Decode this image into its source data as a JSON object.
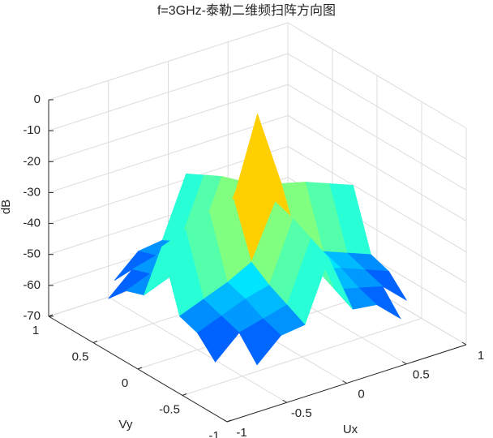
{
  "chart_data": {
    "type": "surface",
    "title": "f=3GHz-泰勒二维频扫阵方向图",
    "xlabel": "Ux",
    "ylabel": "Vy",
    "zlabel": "dB",
    "x": [
      -1,
      -0.8,
      -0.6,
      -0.4,
      -0.2,
      0,
      0.2,
      0.4,
      0.6,
      0.8,
      1
    ],
    "y": [
      -1,
      -0.8,
      -0.6,
      -0.4,
      -0.2,
      0,
      0.2,
      0.4,
      0.6,
      0.8,
      1
    ],
    "z": [
      [
        null,
        null,
        null,
        null,
        null,
        -38,
        null,
        null,
        null,
        null,
        null
      ],
      [
        null,
        null,
        -60,
        -53,
        -52,
        -33,
        -52,
        -53,
        -60,
        null,
        null
      ],
      [
        null,
        -60,
        -53,
        -51,
        -49,
        -30,
        -49,
        -51,
        -53,
        -60,
        null
      ],
      [
        null,
        -54,
        -51,
        -48,
        -46,
        -27,
        -46,
        -48,
        -51,
        -54,
        null
      ],
      [
        null,
        -52,
        -49,
        -46,
        -42,
        -25,
        -42,
        -46,
        -49,
        -52,
        null
      ],
      [
        -38,
        -33,
        -30,
        -27,
        -25,
        0,
        -25,
        -27,
        -30,
        -33,
        -38
      ],
      [
        null,
        -52,
        -49,
        -46,
        -42,
        -25,
        -42,
        -46,
        -49,
        -52,
        null
      ],
      [
        null,
        -54,
        -51,
        -48,
        -46,
        -27,
        -46,
        -48,
        -51,
        -54,
        null
      ],
      [
        null,
        -60,
        -53,
        -51,
        -49,
        -30,
        -49,
        -51,
        -53,
        -60,
        null
      ],
      [
        null,
        null,
        -60,
        -53,
        -52,
        -33,
        -52,
        -53,
        -60,
        null,
        null
      ],
      [
        null,
        null,
        null,
        null,
        null,
        -38,
        null,
        null,
        null,
        null,
        null
      ]
    ],
    "xlim": [
      -1,
      1
    ],
    "ylim": [
      -1,
      1
    ],
    "zlim": [
      -70,
      0
    ],
    "xticks": [
      -1,
      -0.5,
      0,
      0.5,
      1
    ],
    "yticks": [
      -1,
      -0.5,
      0,
      0.5,
      1
    ],
    "zticks": [
      -70,
      -60,
      -50,
      -40,
      -30,
      -20,
      -10,
      0
    ],
    "colormap": "jet",
    "grid": true
  }
}
